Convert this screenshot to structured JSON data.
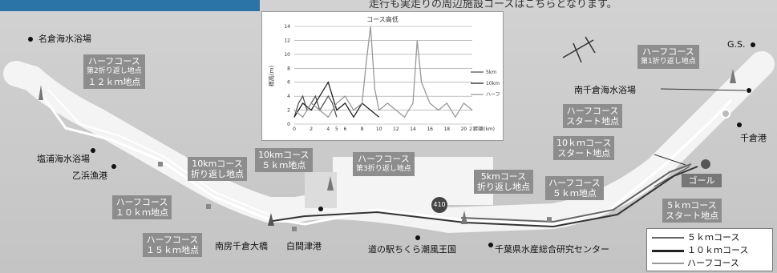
{
  "header_text": "走行も実走りの周辺施設コースはこちらとなります。",
  "chart": {
    "title": "コース高低",
    "ylabel": "標高(ｍ)",
    "xlabel": "距離(km)",
    "yticks": [
      "14",
      "12",
      "10",
      "8",
      "6",
      "4",
      "2",
      "0"
    ],
    "xticks": [
      "0",
      "2",
      "4",
      "5",
      "6",
      "8",
      "10",
      "12",
      "14",
      "16",
      "18",
      "20",
      "21"
    ],
    "legend": [
      "5km",
      "10km",
      "ハーフ"
    ]
  },
  "chart_data": {
    "type": "line",
    "title": "コース高低",
    "xlabel": "距離(km)",
    "ylabel": "標高(ｍ)",
    "xlim": [
      0,
      21
    ],
    "ylim": [
      0,
      14
    ],
    "series": [
      {
        "name": "5km",
        "x": [
          0,
          0.5,
          1,
          1.5,
          2,
          2.5,
          3,
          3.5,
          4,
          4.5,
          5
        ],
        "y": [
          1,
          3,
          4,
          2,
          3,
          4,
          2,
          3,
          4,
          3,
          1
        ]
      },
      {
        "name": "10km",
        "x": [
          0,
          1,
          2,
          3,
          4,
          4.5,
          5,
          6,
          7,
          8,
          9,
          10
        ],
        "y": [
          1,
          3,
          2,
          4,
          6,
          4,
          2,
          3,
          1,
          3,
          2,
          1
        ]
      },
      {
        "name": "ハーフ",
        "x": [
          0,
          1,
          2,
          3,
          4,
          5,
          6,
          7,
          8,
          8.5,
          9,
          9.5,
          10,
          11,
          12,
          13,
          14,
          14.5,
          15,
          16,
          17,
          18,
          19,
          20,
          21
        ],
        "y": [
          2,
          1,
          3,
          2,
          1,
          3,
          4,
          2,
          3,
          9,
          14,
          5,
          2,
          3,
          2,
          1,
          3,
          12,
          6,
          3,
          2,
          3,
          1,
          3,
          2
        ]
      }
    ]
  },
  "places": {
    "nagura": "名倉海水浴場",
    "shioura": "塩浦海水浴場",
    "otohama": "乙浜漁港",
    "minamichikura_beach": "南千倉海水浴場",
    "chikura_port": "千倉港",
    "gs": "G.S.",
    "bridge": "南房千倉大橋",
    "shirama": "白間津港",
    "michinoeki": "道の駅ちくら潮風王国",
    "research": "千葉県水産総合研究センター",
    "route_no": "410"
  },
  "boxes": {
    "half_2nd": [
      "ハーフコース",
      "第2折り返し地点",
      "１２ｋｍ地点"
    ],
    "half_10": [
      "ハーフコース",
      "１０ｋｍ地点"
    ],
    "half_15": [
      "ハーフコース",
      "１５ｋｍ地点"
    ],
    "ten_turn": [
      "10kmコース",
      "折り返し地点"
    ],
    "ten_5": [
      "10kmコース",
      "５ｋｍ地点"
    ],
    "half_3rd": [
      "ハーフコース",
      "第3折り返し地点"
    ],
    "five_turn": [
      "5kmコース",
      "折り返し地点"
    ],
    "half_5": [
      "ハーフコース",
      "５ｋｍ地点"
    ],
    "half_1st": [
      "ハーフコース",
      "第1折り返し地点"
    ],
    "half_start": [
      "ハーフコース",
      "スタート地点"
    ],
    "ten_start": [
      "10ｋｍコース",
      "スタート地点"
    ],
    "five_start": [
      "5ｋｍコース",
      "スタート地点"
    ]
  },
  "goal": "ゴール",
  "legend": [
    "５ｋｍコース",
    "１０ｋｍコース",
    "ハーフコース"
  ],
  "colors": {
    "road": "#f7f7f7",
    "half": "#ffffff",
    "ten": "#333333",
    "five": "#666666",
    "boxbg": "#8d8d8d"
  }
}
